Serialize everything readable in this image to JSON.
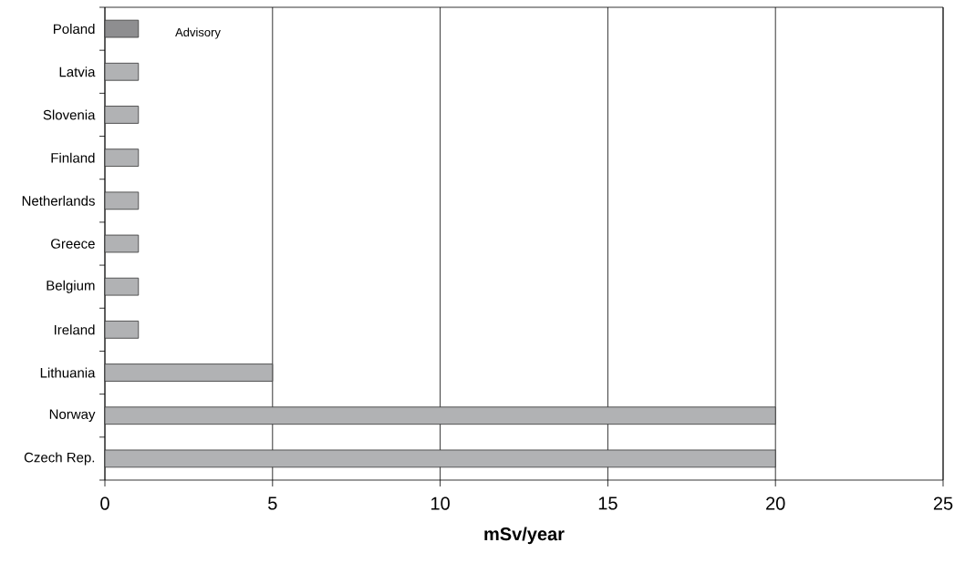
{
  "chart_data": {
    "type": "bar",
    "orientation": "horizontal",
    "xlabel": "mSv/year",
    "categories": [
      "Poland",
      "Latvia",
      "Slovenia",
      "Finland",
      "Netherlands",
      "Greece",
      "Belgium",
      "Ireland",
      "Lithuania",
      "Norway",
      "Czech Rep."
    ],
    "values": [
      1,
      1,
      1,
      1,
      1,
      1,
      1,
      1,
      5,
      20,
      20
    ],
    "colors": [
      "#8e8e90",
      "#b1b2b4",
      "#b1b2b4",
      "#b1b2b4",
      "#b1b2b4",
      "#b1b2b4",
      "#b1b2b4",
      "#b1b2b4",
      "#b1b2b4",
      "#b1b2b4",
      "#b1b2b4"
    ],
    "xlim": [
      0,
      25
    ],
    "xticks": [
      0,
      5,
      10,
      15,
      20,
      25
    ],
    "grid": "x",
    "annotations": [
      "Advisory"
    ]
  }
}
